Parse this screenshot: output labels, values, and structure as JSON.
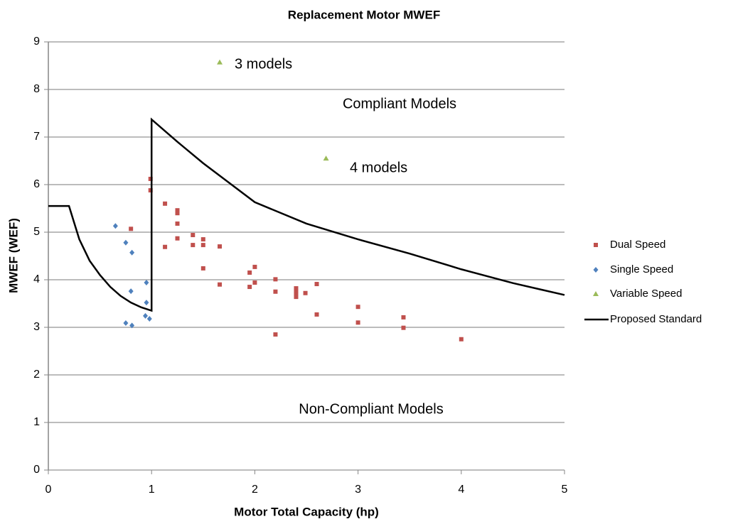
{
  "chart_data": {
    "type": "scatter",
    "title": "Replacement Motor MWEF",
    "xlabel": "Motor Total Capacity (hp)",
    "ylabel": "MWEF (WEF)",
    "xlim": [
      0,
      5
    ],
    "xticks": [
      0,
      1,
      2,
      3,
      4,
      5
    ],
    "ylim": [
      0,
      9
    ],
    "yticks": [
      0,
      1,
      2,
      3,
      4,
      5,
      6,
      7,
      8,
      9
    ],
    "grid": true,
    "legend": "right",
    "annotations": [
      "3 models",
      "Compliant Models",
      "4 models",
      "Non-Compliant Models"
    ],
    "series": [
      {
        "name": "Dual Speed",
        "color": "#c0504d",
        "marker": "square",
        "x": [
          0.8,
          0.99,
          0.99,
          1.13,
          1.13,
          1.25,
          1.25,
          1.25,
          1.25,
          1.4,
          1.4,
          1.5,
          1.5,
          1.5,
          1.66,
          1.66,
          1.95,
          1.95,
          2.0,
          2.0,
          2.2,
          2.2,
          2.2,
          2.4,
          2.4,
          2.4,
          2.4,
          2.49,
          2.6,
          2.6,
          3.0,
          3.0,
          3.44,
          3.44,
          4.0
        ],
        "values": [
          5.07,
          6.12,
          5.88,
          5.6,
          4.69,
          5.46,
          5.4,
          5.18,
          4.87,
          4.94,
          4.73,
          4.85,
          4.73,
          4.24,
          4.7,
          3.9,
          4.15,
          3.85,
          4.27,
          3.94,
          4.01,
          3.75,
          2.85,
          3.82,
          3.76,
          3.7,
          3.64,
          3.72,
          3.91,
          3.27,
          3.43,
          3.1,
          3.21,
          2.99,
          2.75
        ]
      },
      {
        "name": "Single Speed",
        "color": "#4f81bd",
        "marker": "diamond",
        "x": [
          0.65,
          0.75,
          0.81,
          0.8,
          0.95,
          0.95,
          0.94,
          0.98,
          0.75,
          0.81
        ],
        "values": [
          5.13,
          4.78,
          4.57,
          3.76,
          3.94,
          3.52,
          3.24,
          3.18,
          3.09,
          3.04
        ]
      },
      {
        "name": "Variable Speed",
        "color": "#9bbb59",
        "marker": "triangle",
        "x": [
          1.66,
          2.69
        ],
        "values": [
          8.57,
          6.55
        ]
      },
      {
        "name": "Proposed Standard",
        "color": "#000000",
        "marker": "line",
        "x": [
          0,
          0.2,
          0.25,
          0.3,
          0.4,
          0.5,
          0.6,
          0.7,
          0.8,
          0.9,
          1.0,
          1.0,
          1.25,
          1.5,
          2.0,
          2.5,
          3.0,
          3.5,
          4.0,
          4.5,
          5.0
        ],
        "values": [
          5.55,
          5.55,
          5.2,
          4.85,
          4.4,
          4.1,
          3.85,
          3.66,
          3.52,
          3.42,
          3.35,
          7.37,
          6.9,
          6.45,
          5.63,
          5.18,
          4.85,
          4.55,
          4.22,
          3.93,
          3.68
        ]
      }
    ]
  }
}
